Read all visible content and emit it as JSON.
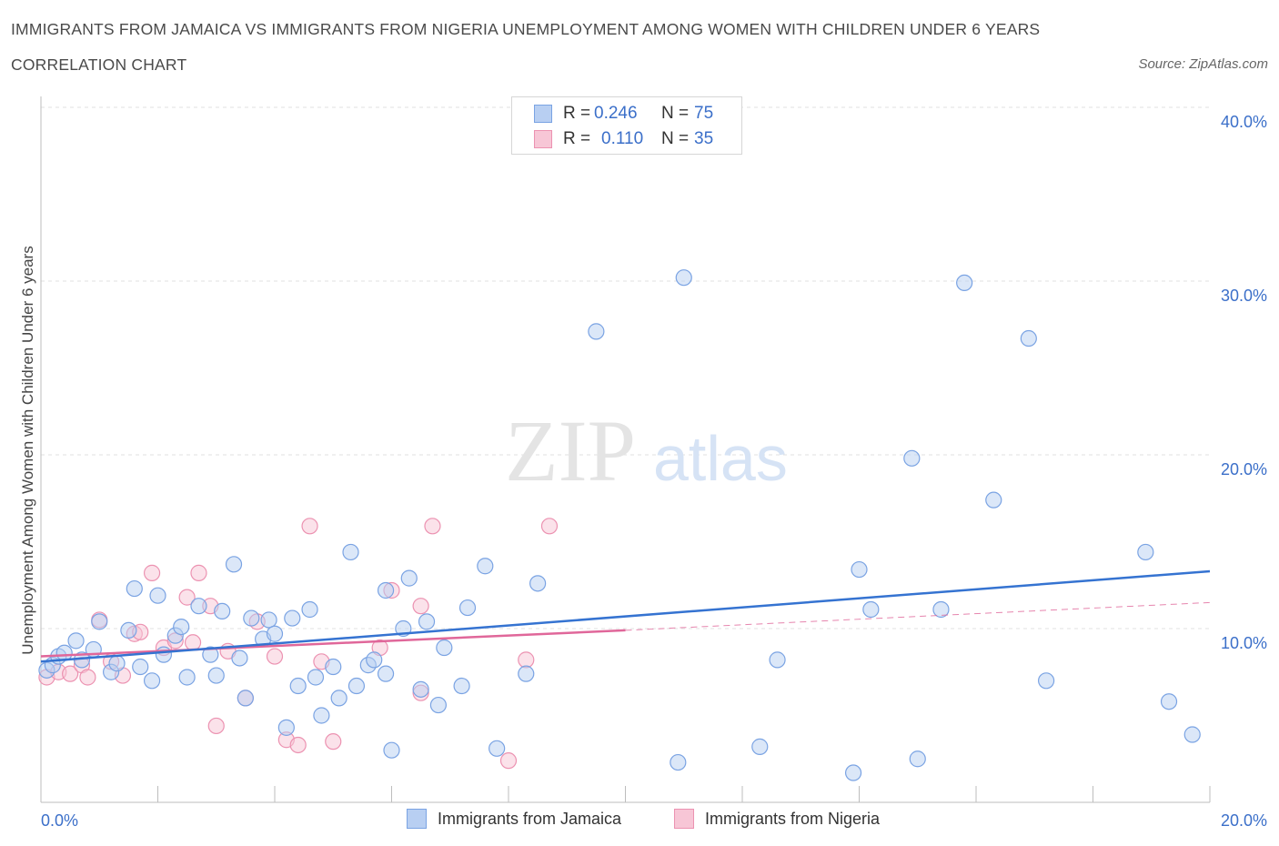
{
  "header": {
    "title": "IMMIGRANTS FROM JAMAICA VS IMMIGRANTS FROM NIGERIA UNEMPLOYMENT AMONG WOMEN WITH CHILDREN UNDER 6 YEARS",
    "subtitle": "CORRELATION CHART",
    "source": "Source: ZipAtlas.com"
  },
  "watermark": {
    "zip": "ZIP",
    "atlas": "atlas"
  },
  "legend": {
    "rows": [
      {
        "r_label": "R =",
        "r_value": "0.246",
        "n_label": "N =",
        "n_value": "75"
      },
      {
        "r_label": "R =",
        "r_value": "0.110",
        "n_label": "N =",
        "n_value": "35"
      }
    ]
  },
  "colors": {
    "jamaica_fill": "#b8cff2",
    "jamaica_stroke": "#7aa3e3",
    "jamaica_line": "#3573d1",
    "nigeria_fill": "#f7c6d6",
    "nigeria_stroke": "#ec92b1",
    "nigeria_line": "#e0679a",
    "axis_label": "#3b6fc9",
    "grid": "#e2e2e2"
  },
  "chart_data": {
    "type": "scatter",
    "title": "IMMIGRANTS FROM JAMAICA VS IMMIGRANTS FROM NIGERIA UNEMPLOYMENT AMONG WOMEN WITH CHILDREN UNDER 6 YEARS",
    "subtitle": "CORRELATION CHART",
    "ylabel": "Unemployment Among Women with Children Under 6 years",
    "xlabel": "",
    "xlim": [
      0,
      20
    ],
    "ylim": [
      0,
      40
    ],
    "x_tick_labels": [
      {
        "value": 0,
        "label": "0.0%"
      },
      {
        "value": 20,
        "label": "20.0%"
      }
    ],
    "y_tick_labels": [
      {
        "value": 10,
        "label": "10.0%"
      },
      {
        "value": 20,
        "label": "20.0%"
      },
      {
        "value": 30,
        "label": "30.0%"
      },
      {
        "value": 40,
        "label": "40.0%"
      }
    ],
    "grid": true,
    "legend_position": "top-center",
    "series": [
      {
        "name": "Immigrants from Jamaica",
        "R": 0.246,
        "N": 75,
        "trend": {
          "x": [
            0,
            20
          ],
          "y": [
            8.1,
            13.3
          ],
          "dashed_extension": false
        },
        "points": [
          [
            0.1,
            7.6
          ],
          [
            0.2,
            7.9
          ],
          [
            0.3,
            8.4
          ],
          [
            0.4,
            8.6
          ],
          [
            0.6,
            9.3
          ],
          [
            0.7,
            8.2
          ],
          [
            0.9,
            8.8
          ],
          [
            1.0,
            10.4
          ],
          [
            1.2,
            7.5
          ],
          [
            1.3,
            8.0
          ],
          [
            1.5,
            9.9
          ],
          [
            1.6,
            12.3
          ],
          [
            1.7,
            7.8
          ],
          [
            1.9,
            7.0
          ],
          [
            2.0,
            11.9
          ],
          [
            2.1,
            8.5
          ],
          [
            2.3,
            9.6
          ],
          [
            2.4,
            10.1
          ],
          [
            2.5,
            7.2
          ],
          [
            2.7,
            11.3
          ],
          [
            2.9,
            8.5
          ],
          [
            3.0,
            7.3
          ],
          [
            3.1,
            11.0
          ],
          [
            3.3,
            13.7
          ],
          [
            3.4,
            8.3
          ],
          [
            3.5,
            6.0
          ],
          [
            3.6,
            10.6
          ],
          [
            3.8,
            9.4
          ],
          [
            3.9,
            10.5
          ],
          [
            4.0,
            9.7
          ],
          [
            4.2,
            4.3
          ],
          [
            4.3,
            10.6
          ],
          [
            4.4,
            6.7
          ],
          [
            4.6,
            11.1
          ],
          [
            4.7,
            7.2
          ],
          [
            4.8,
            5.0
          ],
          [
            5.0,
            7.8
          ],
          [
            5.1,
            6.0
          ],
          [
            5.3,
            14.4
          ],
          [
            5.4,
            6.7
          ],
          [
            5.6,
            7.9
          ],
          [
            5.7,
            8.2
          ],
          [
            5.9,
            7.4
          ],
          [
            5.9,
            12.2
          ],
          [
            6.0,
            3.0
          ],
          [
            6.2,
            10.0
          ],
          [
            6.3,
            12.9
          ],
          [
            6.5,
            6.5
          ],
          [
            6.6,
            10.4
          ],
          [
            6.8,
            5.6
          ],
          [
            6.9,
            8.9
          ],
          [
            7.2,
            6.7
          ],
          [
            7.3,
            11.2
          ],
          [
            7.6,
            13.6
          ],
          [
            7.8,
            3.1
          ],
          [
            8.3,
            7.4
          ],
          [
            8.5,
            12.6
          ],
          [
            9.5,
            27.1
          ],
          [
            10.9,
            2.3
          ],
          [
            11.0,
            30.2
          ],
          [
            12.3,
            3.2
          ],
          [
            12.6,
            8.2
          ],
          [
            13.9,
            1.7
          ],
          [
            14.0,
            13.4
          ],
          [
            14.2,
            11.1
          ],
          [
            14.9,
            19.8
          ],
          [
            15.0,
            2.5
          ],
          [
            15.4,
            11.1
          ],
          [
            15.8,
            29.9
          ],
          [
            16.3,
            17.4
          ],
          [
            16.9,
            26.7
          ],
          [
            17.2,
            7.0
          ],
          [
            18.9,
            14.4
          ],
          [
            19.3,
            5.8
          ],
          [
            19.7,
            3.9
          ]
        ]
      },
      {
        "name": "Immigrants from Nigeria",
        "R": 0.11,
        "N": 35,
        "trend": {
          "x": [
            0,
            10
          ],
          "y": [
            8.4,
            9.9
          ],
          "dashed_to": [
            20,
            11.5
          ]
        },
        "points": [
          [
            0.1,
            7.2
          ],
          [
            0.3,
            7.5
          ],
          [
            0.5,
            7.4
          ],
          [
            0.7,
            7.9
          ],
          [
            0.8,
            7.2
          ],
          [
            1.0,
            10.5
          ],
          [
            1.2,
            8.1
          ],
          [
            1.4,
            7.3
          ],
          [
            1.6,
            9.7
          ],
          [
            1.7,
            9.8
          ],
          [
            1.9,
            13.2
          ],
          [
            2.1,
            8.9
          ],
          [
            2.3,
            9.3
          ],
          [
            2.5,
            11.8
          ],
          [
            2.6,
            9.2
          ],
          [
            2.7,
            13.2
          ],
          [
            2.9,
            11.3
          ],
          [
            3.0,
            4.4
          ],
          [
            3.2,
            8.7
          ],
          [
            3.5,
            6.0
          ],
          [
            3.7,
            10.4
          ],
          [
            4.0,
            8.4
          ],
          [
            4.2,
            3.6
          ],
          [
            4.4,
            3.3
          ],
          [
            4.6,
            15.9
          ],
          [
            4.8,
            8.1
          ],
          [
            5.0,
            3.5
          ],
          [
            5.8,
            8.9
          ],
          [
            6.0,
            12.2
          ],
          [
            6.5,
            6.3
          ],
          [
            6.5,
            11.3
          ],
          [
            6.7,
            15.9
          ],
          [
            8.0,
            2.4
          ],
          [
            8.3,
            8.2
          ],
          [
            8.7,
            15.9
          ]
        ]
      }
    ]
  }
}
